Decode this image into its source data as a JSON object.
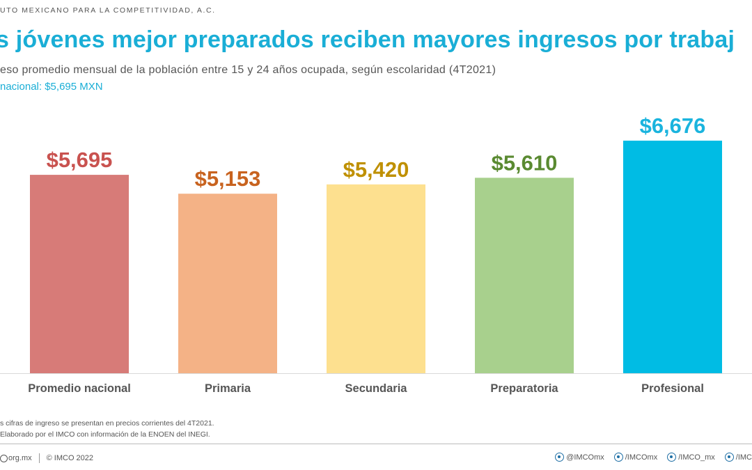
{
  "header": {
    "org": "UTO MEXICANO PARA LA COMPETITIVIDAD, A.C.",
    "title": "s jóvenes mejor preparados reciben mayores ingresos por trabaj",
    "subtitle": "eso promedio mensual de la población entre 15 y 24 años ocupada, según escolaridad (4T2021)",
    "national_avg": "nacional: $5,695 MXN"
  },
  "chart_data": {
    "type": "bar",
    "categories": [
      "Promedio nacional",
      "Primaria",
      "Secundaria",
      "Preparatoria",
      "Profesional"
    ],
    "values": [
      5695,
      5153,
      5420,
      5610,
      6676
    ],
    "value_labels": [
      "$5,695",
      "$5,153",
      "$5,420",
      "$5,610",
      "$6,676"
    ],
    "bar_colors": [
      "#d77b78",
      "#f4b286",
      "#fde08f",
      "#a8d08d",
      "#00bce4"
    ],
    "label_colors": [
      "#c9524f",
      "#c8631f",
      "#bf9000",
      "#5a8a31",
      "#1ab4de"
    ],
    "ylim": [
      0,
      6676
    ],
    "grid": false,
    "legend": "none"
  },
  "notes": {
    "line1": "s cifras de ingreso se presentan en precios corrientes del 4T2021.",
    "line2": "Elaborado por el IMCO con información de la ENOEN del INEGI."
  },
  "footer": {
    "site": "org.mx",
    "copyright": "© IMCO 2022",
    "twitter": "@IMCOmx",
    "facebook": "/IMCOmx",
    "instagram": "/IMCO_mx",
    "youtube": "/IMC"
  }
}
